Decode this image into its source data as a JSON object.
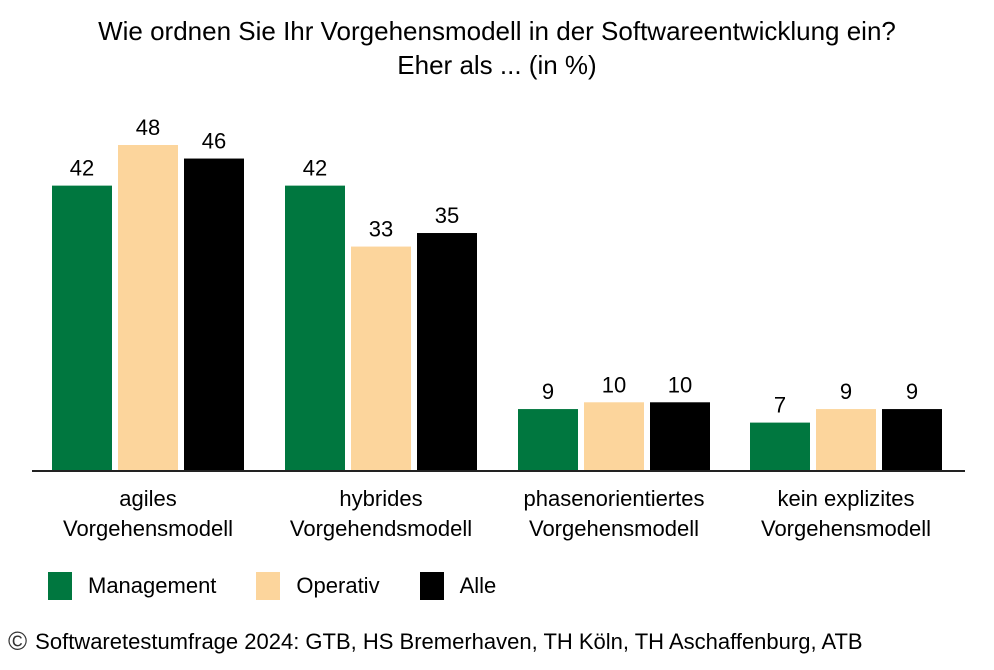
{
  "chart_data": {
    "type": "bar",
    "title": "Wie ordnen Sie Ihr Vorgehensmodell in der Softwareentwicklung ein?",
    "subtitle": "Eher als ... (in %)",
    "xlabel": "",
    "ylabel": "",
    "ylim": [
      0,
      48
    ],
    "grid": false,
    "legend_position": "bottom-left",
    "categories": [
      [
        "agiles",
        "Vorgehensmodell"
      ],
      [
        "hybrides",
        "Vorgehendsmodell"
      ],
      [
        "phasenorientiertes",
        "Vorgehensmodell"
      ],
      [
        "kein explizites",
        "Vorgehensmodell"
      ]
    ],
    "series": [
      {
        "name": "Management",
        "color": "#00773f",
        "values": [
          42,
          42,
          9,
          7
        ]
      },
      {
        "name": "Operativ",
        "color": "#fcd59c",
        "values": [
          48,
          33,
          10,
          9
        ]
      },
      {
        "name": "Alle",
        "color": "#000000",
        "values": [
          46,
          35,
          10,
          9
        ]
      }
    ]
  },
  "footer": {
    "copyright_symbol": "©",
    "source": "Softwaretestumfrage 2024: GTB, HS Bremerhaven, TH Köln, TH Aschaffenburg, ATB"
  }
}
